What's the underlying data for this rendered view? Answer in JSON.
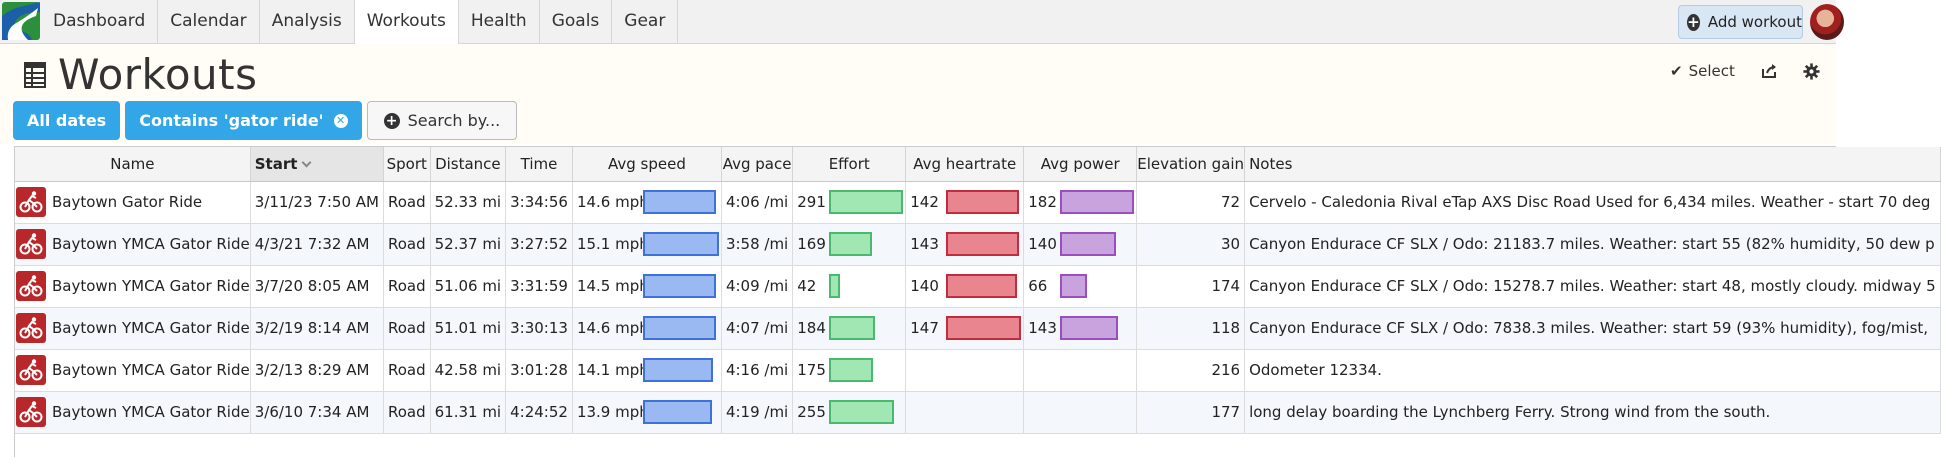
{
  "nav": {
    "tabs": [
      {
        "label": "Dashboard"
      },
      {
        "label": "Calendar"
      },
      {
        "label": "Analysis"
      },
      {
        "label": "Workouts",
        "active": true
      },
      {
        "label": "Health"
      },
      {
        "label": "Goals"
      },
      {
        "label": "Gear"
      }
    ],
    "add_workout_label": "Add workout",
    "add_icon": "plus-circle-icon"
  },
  "page": {
    "title": "Workouts",
    "title_icon": "table-icon",
    "select_label": "Select",
    "select_icon": "checkmark-icon",
    "share_icon": "share-icon",
    "settings_icon": "gear-icon"
  },
  "filters": {
    "dates_label": "All dates",
    "contains_label": "Contains 'gator ride'",
    "remove_icon": "close-circle-icon",
    "search_label": "Search by..."
  },
  "table": {
    "headers": {
      "name": "Name",
      "start": "Start",
      "sport": "Sport",
      "distance": "Distance",
      "time": "Time",
      "avg_speed": "Avg speed",
      "avg_pace": "Avg pace",
      "effort": "Effort",
      "avg_heartrate": "Avg heartrate",
      "avg_power": "Avg power",
      "elevation_gain": "Elevation gain",
      "notes": "Notes"
    },
    "sort_column": "Start",
    "sport_icon": "cycling-icon",
    "rows": [
      {
        "name": "Baytown Gator Ride",
        "start": "3/11/23 7:50 AM",
        "sport": "Road",
        "distance": "52.33 mi",
        "time": "3:34:56",
        "speed": "14.6 mph",
        "speed_level": 0.93,
        "pace": "4:06 /mi",
        "effort": "291",
        "effort_level": 0.97,
        "hr": "142",
        "hr_level": 0.93,
        "power": "182",
        "power_level": 0.97,
        "elev": "72",
        "notes": "Cervelo - Caledonia Rival eTap AXS Disc Road Used for 6,434 miles. Weather - start 70 deg"
      },
      {
        "name": "Baytown YMCA Gator Ride",
        "start": "4/3/21 7:32 AM",
        "sport": "Road",
        "distance": "52.37 mi",
        "time": "3:27:52",
        "speed": "15.1 mph",
        "speed_level": 0.97,
        "pace": "3:58 /mi",
        "effort": "169",
        "effort_level": 0.56,
        "hr": "143",
        "hr_level": 0.93,
        "power": "140",
        "power_level": 0.74,
        "elev": "30",
        "notes": "Canyon Endurace CF SLX / Odo: 21183.7 miles. Weather: start 55 (82% humidity, 50 dew p"
      },
      {
        "name": "Baytown YMCA Gator Ride",
        "start": "3/7/20 8:05 AM",
        "sport": "Road",
        "distance": "51.06 mi",
        "time": "3:31:59",
        "speed": "14.5 mph",
        "speed_level": 0.93,
        "pace": "4:09 /mi",
        "effort": "42",
        "effort_level": 0.14,
        "hr": "140",
        "hr_level": 0.91,
        "power": "66",
        "power_level": 0.35,
        "elev": "174",
        "notes": "Canyon Endurace CF SLX / Odo: 15278.7 miles. Weather: start 48, mostly cloudy. midway 5"
      },
      {
        "name": "Baytown YMCA Gator Ride",
        "start": "3/2/19 8:14 AM",
        "sport": "Road",
        "distance": "51.01 mi",
        "time": "3:30:13",
        "speed": "14.6 mph",
        "speed_level": 0.93,
        "pace": "4:07 /mi",
        "effort": "184",
        "effort_level": 0.61,
        "hr": "147",
        "hr_level": 0.96,
        "power": "143",
        "power_level": 0.76,
        "elev": "118",
        "notes": "Canyon Endurace CF SLX / Odo: 7838.3 miles. Weather: start 59 (93% humidity), fog/mist,"
      },
      {
        "name": "Baytown YMCA Gator Ride",
        "start": "3/2/13 8:29 AM",
        "sport": "Road",
        "distance": "42.58 mi",
        "time": "3:01:28",
        "speed": "14.1 mph",
        "speed_level": 0.9,
        "pace": "4:16 /mi",
        "effort": "175",
        "effort_level": 0.58,
        "hr": "",
        "hr_level": 0,
        "power": "",
        "power_level": 0,
        "elev": "216",
        "notes": "Odometer 12334."
      },
      {
        "name": "Baytown YMCA Gator Ride",
        "start": "3/6/10 7:34 AM",
        "sport": "Road",
        "distance": "61.31 mi",
        "time": "4:24:52",
        "speed": "13.9 mph",
        "speed_level": 0.89,
        "pace": "4:19 /mi",
        "effort": "255",
        "effort_level": 0.85,
        "hr": "",
        "hr_level": 0,
        "power": "",
        "power_level": 0,
        "elev": "177",
        "notes": "long delay boarding the Lynchberg Ferry. Strong wind from the south."
      }
    ]
  }
}
